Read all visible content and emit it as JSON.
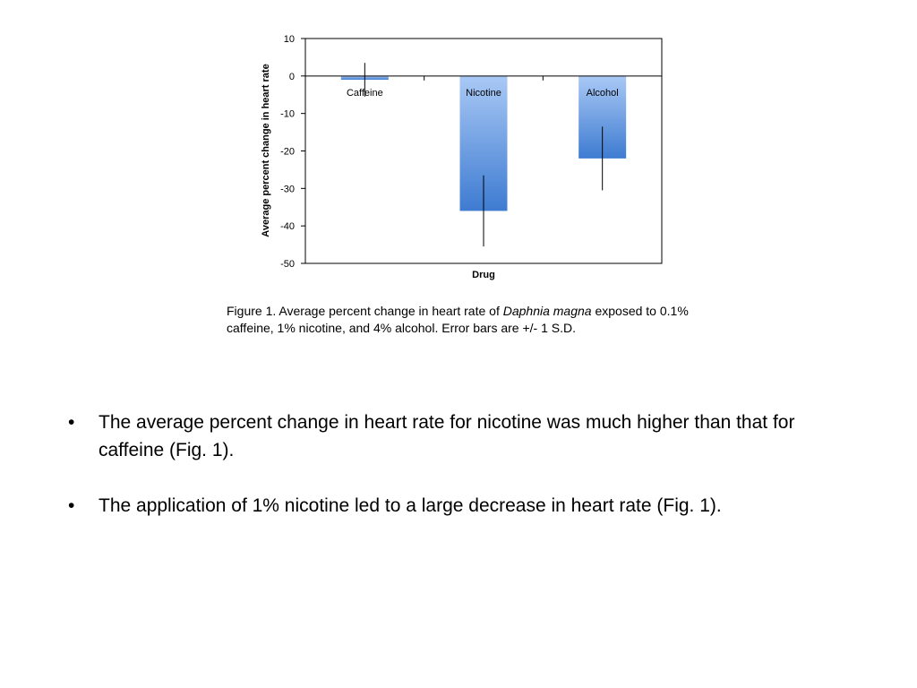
{
  "chart_data": {
    "type": "bar",
    "categories": [
      "Caffeine",
      "Nicotine",
      "Alcohol"
    ],
    "values": [
      -1,
      -36,
      -22
    ],
    "error_bars": [
      4.5,
      9.5,
      8.5
    ],
    "xlabel": "Drug",
    "ylabel": "Average percent change in heart rate",
    "ylim": [
      -50,
      10
    ],
    "yticks": [
      "10",
      "0",
      "-10",
      "-20",
      "-30",
      "-40",
      "-50"
    ],
    "grid": false,
    "legend": "none",
    "colors": {
      "bar_top": "#a9c9f5",
      "bar_bottom": "#3e7bd1",
      "axis": "#000000"
    }
  },
  "caption": {
    "prefix": "Figure 1. Average percent change in heart rate of ",
    "species": "Daphnia magna",
    "suffix": " exposed to 0.1% caffeine, 1% nicotine, and 4% alcohol.  Error bars are +/- 1 S.D."
  },
  "bullets": {
    "marker": "•",
    "items": [
      "The average percent change in heart rate for nicotine was much higher than that for caffeine (Fig. 1).",
      "The application of 1% nicotine led to a large decrease in heart rate (Fig. 1)."
    ]
  }
}
